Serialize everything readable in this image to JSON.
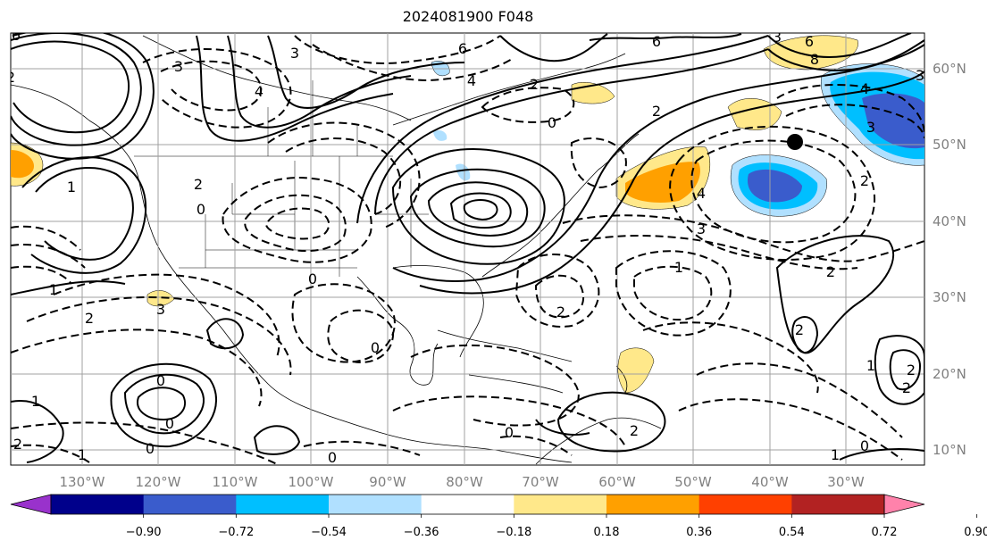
{
  "title": "2024081900 F048",
  "map": {
    "lon_labels": [
      "130°W",
      "120°W",
      "110°W",
      "100°W",
      "90°W",
      "80°W",
      "70°W",
      "60°W",
      "50°W",
      "40°W",
      "30°W"
    ],
    "lat_labels": [
      "60°N",
      "50°N",
      "40°N",
      "30°N",
      "20°N",
      "10°N"
    ],
    "contour_labels": [
      "6",
      "6",
      "3",
      "4",
      "4",
      "3",
      "2",
      "3",
      "6",
      "8",
      "6",
      "3",
      "2",
      "2",
      "0",
      "4",
      "3",
      "4",
      "3",
      "2",
      "2",
      "0",
      "1",
      "1",
      "2",
      "3",
      "0",
      "0",
      "2",
      "1",
      "2",
      "2",
      "1",
      "2",
      "2",
      "0",
      "0",
      "2",
      "1",
      "0",
      "1",
      "0",
      "0",
      "2",
      "1",
      "0"
    ],
    "marker": "black-dot"
  },
  "colorbar": {
    "ticks": [
      "−0.90",
      "−0.72",
      "−0.54",
      "−0.36",
      "−0.18",
      "0.18",
      "0.36",
      "0.54",
      "0.72",
      "0.90"
    ],
    "colors": [
      "#9932cc",
      "#00008b",
      "#3a5ccc",
      "#00bfff",
      "#b0e0ff",
      "#ffffff",
      "#ffe88a",
      "#ffa000",
      "#ff4000",
      "#b22222",
      "#ff82ab"
    ]
  }
}
